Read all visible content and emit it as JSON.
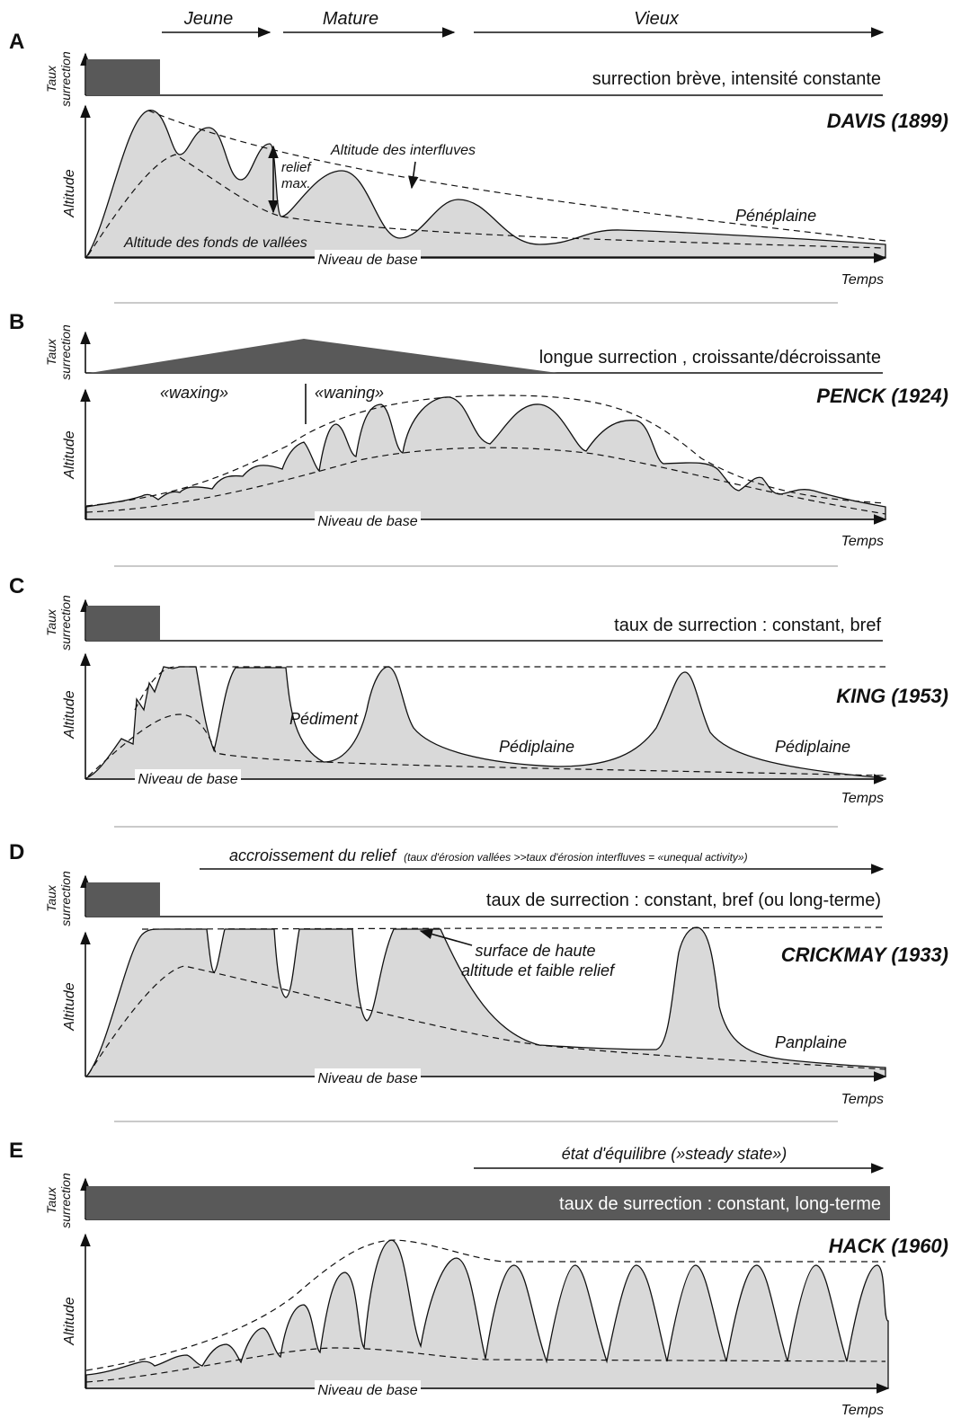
{
  "stages": {
    "young": "Jeune",
    "mature": "Mature",
    "old": "Vieux"
  },
  "axis": {
    "rate": "Taux surrection",
    "rate_l1": "Taux",
    "rate_l2": "surrection",
    "altitude": "Altitude",
    "time": "Temps",
    "base": "Niveau de base"
  },
  "panels": [
    {
      "letter": "A",
      "model": "DAVIS (1899)",
      "uplift": "surrection brève, intensité constante",
      "labels": {
        "interfluves": "Altitude des interfluves",
        "valleys": "Altitude des fonds de vallées",
        "relief": "relief max.",
        "relief_l1": "relief",
        "relief_l2": "max.",
        "peneplain": "Pénéplaine"
      }
    },
    {
      "letter": "B",
      "model": "PENCK (1924)",
      "uplift": "longue surrection , croissante/décroissante",
      "labels": {
        "waxing": "«waxing»",
        "waning": "«waning»"
      }
    },
    {
      "letter": "C",
      "model": "KING (1953)",
      "uplift": "taux de surrection : constant, bref",
      "labels": {
        "pediment": "Pédiment",
        "pediplain1": "Pédiplaine",
        "pediplain2": "Pédiplaine"
      }
    },
    {
      "letter": "D",
      "model": "CRICKMAY (1933)",
      "uplift": "taux de surrection : constant, bref (ou long-terme)",
      "labels": {
        "relief_growth": "accroissement du relief",
        "relief_growth_note": "(taux d'érosion vallées >>taux d'érosion interfluves = «unequal activity»)",
        "surface": "surface de haute altitude et faible relief",
        "surface_l1": "surface de haute",
        "surface_l2": "altitude et faible relief",
        "panplain": "Panplaine"
      }
    },
    {
      "letter": "E",
      "model": "HACK (1960)",
      "uplift": "taux de surrection : constant, long-terme",
      "labels": {
        "steady": "état d'équilibre (»steady state»)"
      }
    }
  ],
  "colors": {
    "land": "#d9d9d9",
    "uplift_bar": "#595959",
    "ink": "#111111"
  }
}
